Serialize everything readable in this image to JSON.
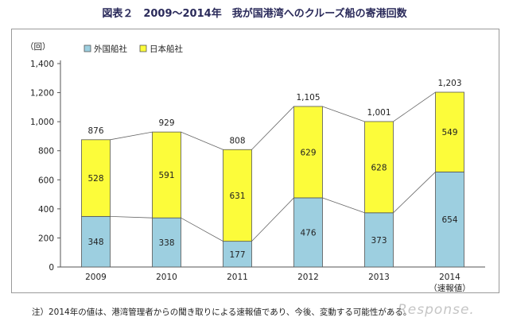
{
  "title": "図表２　2009～2014年　我が国港湾へのクルーズ船の寄港回数",
  "note": "注）2014年の値は、港湾管理者からの聞き取りによる速報値であり、今後、変動する可能性がある。",
  "watermark": "Response.",
  "colors": {
    "foreign": "#9dcfe0",
    "japanese": "#fcfc3a",
    "stroke": "#555555",
    "connector": "#666666"
  },
  "chart_data": {
    "type": "bar",
    "stacked": true,
    "ylabel": "（回）",
    "ylim": [
      0,
      1400
    ],
    "yticks": [
      0,
      200,
      400,
      600,
      800,
      1000,
      1200,
      1400
    ],
    "ytick_labels": [
      "0",
      "200",
      "400",
      "600",
      "800",
      "1,000",
      "1,200",
      "1,400"
    ],
    "grid": false,
    "legend_position": "top-left",
    "categories": [
      "2009",
      "2010",
      "2011",
      "2012",
      "2013",
      "2014"
    ],
    "category_sublabels": [
      "",
      "",
      "",
      "",
      "",
      "（速報値）"
    ],
    "series": [
      {
        "name": "外国船社",
        "values": [
          348,
          338,
          177,
          476,
          373,
          654
        ]
      },
      {
        "name": "日本船社",
        "values": [
          528,
          591,
          631,
          629,
          628,
          549
        ]
      }
    ],
    "totals": [
      876,
      929,
      808,
      1105,
      1001,
      1203
    ],
    "total_labels": [
      "876",
      "929",
      "808",
      "1,105",
      "1,001",
      "1,203"
    ]
  }
}
